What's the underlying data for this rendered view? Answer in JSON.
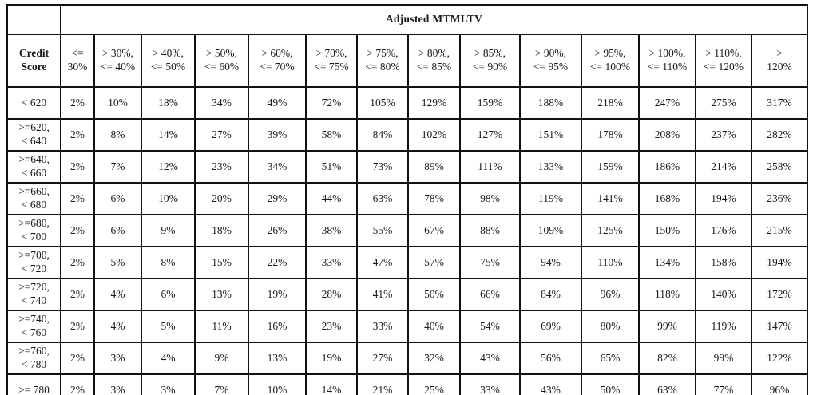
{
  "table": {
    "banner": "Adjusted MTMLTV",
    "row_header": "Credit Score",
    "columns": [
      "<=\n30%",
      "> 30%,\n<= 40%",
      "> 40%,\n<= 50%",
      "> 50%,\n<= 60%",
      "> 60%,\n<= 70%",
      "> 70%,\n<= 75%",
      "> 75%,\n<= 80%",
      "> 80%,\n<= 85%",
      "> 85%,\n<= 90%",
      "> 90%,\n<= 95%",
      "> 95%,\n<= 100%",
      "> 100%,\n<= 110%",
      "> 110%,\n<= 120%",
      ">\n120%"
    ],
    "rows": [
      {
        "label": "< 620",
        "values": [
          "2%",
          "10%",
          "18%",
          "34%",
          "49%",
          "72%",
          "105%",
          "129%",
          "159%",
          "188%",
          "218%",
          "247%",
          "275%",
          "317%"
        ]
      },
      {
        "label": ">=620,\n< 640",
        "values": [
          "2%",
          "8%",
          "14%",
          "27%",
          "39%",
          "58%",
          "84%",
          "102%",
          "127%",
          "151%",
          "178%",
          "208%",
          "237%",
          "282%"
        ]
      },
      {
        "label": ">=640,\n< 660",
        "values": [
          "2%",
          "7%",
          "12%",
          "23%",
          "34%",
          "51%",
          "73%",
          "89%",
          "111%",
          "133%",
          "159%",
          "186%",
          "214%",
          "258%"
        ]
      },
      {
        "label": ">=660,\n< 680",
        "values": [
          "2%",
          "6%",
          "10%",
          "20%",
          "29%",
          "44%",
          "63%",
          "78%",
          "98%",
          "119%",
          "141%",
          "168%",
          "194%",
          "236%"
        ]
      },
      {
        "label": ">=680,\n< 700",
        "values": [
          "2%",
          "6%",
          "9%",
          "18%",
          "26%",
          "38%",
          "55%",
          "67%",
          "88%",
          "109%",
          "125%",
          "150%",
          "176%",
          "215%"
        ]
      },
      {
        "label": ">=700,\n< 720",
        "values": [
          "2%",
          "5%",
          "8%",
          "15%",
          "22%",
          "33%",
          "47%",
          "57%",
          "75%",
          "94%",
          "110%",
          "134%",
          "158%",
          "194%"
        ]
      },
      {
        "label": ">=720,\n< 740",
        "values": [
          "2%",
          "4%",
          "6%",
          "13%",
          "19%",
          "28%",
          "41%",
          "50%",
          "66%",
          "84%",
          "96%",
          "118%",
          "140%",
          "172%"
        ]
      },
      {
        "label": ">=740,\n< 760",
        "values": [
          "2%",
          "4%",
          "5%",
          "11%",
          "16%",
          "23%",
          "33%",
          "40%",
          "54%",
          "69%",
          "80%",
          "99%",
          "119%",
          "147%"
        ]
      },
      {
        "label": ">=760,\n< 780",
        "values": [
          "2%",
          "3%",
          "4%",
          "9%",
          "13%",
          "19%",
          "27%",
          "32%",
          "43%",
          "56%",
          "65%",
          "82%",
          "99%",
          "122%"
        ]
      },
      {
        "label": ">= 780",
        "values": [
          "2%",
          "3%",
          "3%",
          "7%",
          "10%",
          "14%",
          "21%",
          "25%",
          "33%",
          "43%",
          "50%",
          "63%",
          "77%",
          "96%"
        ]
      }
    ]
  }
}
